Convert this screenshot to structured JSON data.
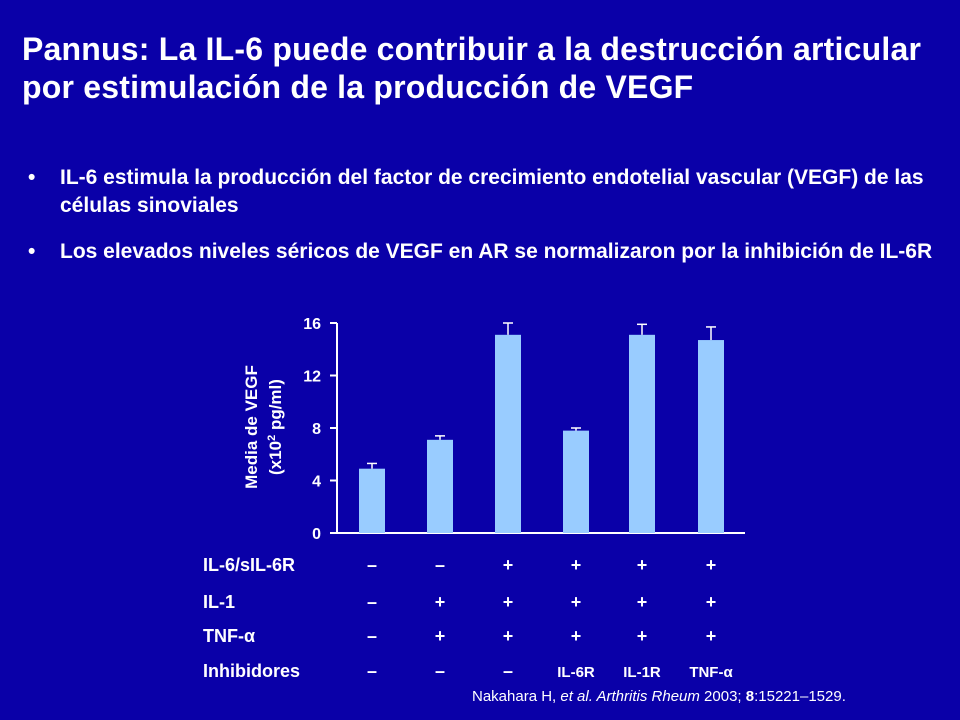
{
  "title": "Pannus: La IL-6 puede contribuir a la destrucción articular por estimulación de la producción de VEGF",
  "bullet_symbol": "•",
  "bullets": [
    "IL-6 estimula la producción del factor de crecimiento endotelial vascular (VEGF) de las células sinoviales",
    "Los elevados niveles séricos de VEGF en AR se normalizaron por la inhibición de IL-6R"
  ],
  "citation": {
    "authors": "Nakahara H, ",
    "etal": "et al.",
    "journal": " Arthritis Rheum",
    "year": " 2003; ",
    "volume": "8",
    "pages": ":15221–1529."
  },
  "chart_data": {
    "type": "bar",
    "ylabel_line1": "Media de VEGF",
    "ylabel_line2_pre": "(x10",
    "ylabel_line2_sup": "2",
    "ylabel_line2_post": " pg/ml)",
    "ylim": [
      0,
      16
    ],
    "yticks": [
      0,
      4,
      8,
      12,
      16
    ],
    "values": [
      4.9,
      7.1,
      15.1,
      7.8,
      15.1,
      14.7
    ],
    "errors": [
      0.4,
      0.3,
      0.9,
      0.2,
      0.8,
      1.0
    ],
    "bar_color": "#99ccff",
    "condition_rows": [
      {
        "label": "IL-6/sIL-6R",
        "cells": [
          "–",
          "–",
          "+",
          "+",
          "+",
          "+"
        ]
      },
      {
        "label": "IL-1",
        "cells": [
          "–",
          "+",
          "+",
          "+",
          "+",
          "+"
        ]
      },
      {
        "label": "TNF-α",
        "cells": [
          "–",
          "+",
          "+",
          "+",
          "+",
          "+"
        ]
      },
      {
        "label": "Inhibidores",
        "cells": [
          "–",
          "–",
          "–",
          "IL-6R",
          "IL-1R",
          "TNF-α"
        ]
      }
    ]
  }
}
